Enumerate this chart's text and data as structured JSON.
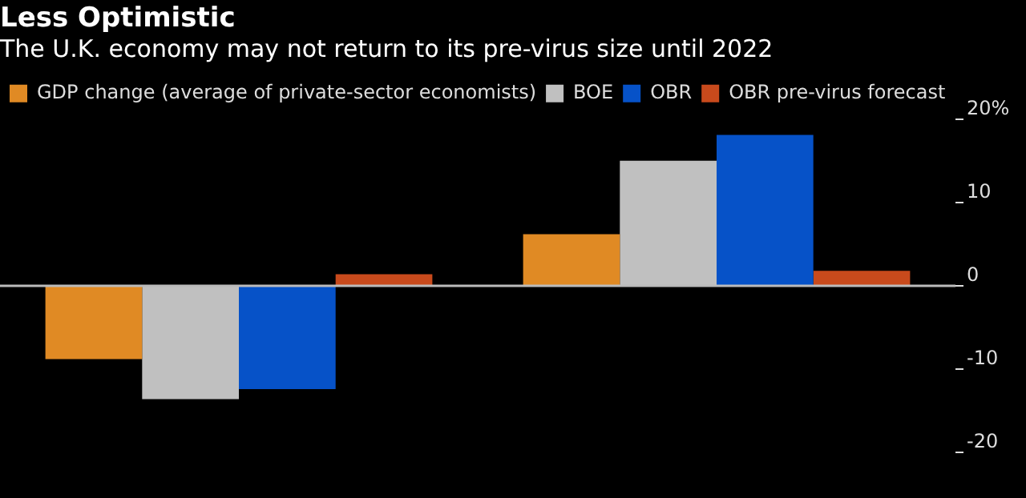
{
  "chart_data": {
    "type": "bar",
    "title": "Less Optimistic",
    "subtitle": "The U.K. economy may not return to its pre-virus size until 2022",
    "categories": [
      null,
      null
    ],
    "series": [
      {
        "name": "GDP change (average of private-sector economists)",
        "color": "#e08a24",
        "values": [
          -8.8,
          6.2
        ]
      },
      {
        "name": "BOE",
        "color": "#c0c0c0",
        "values": [
          -13.6,
          15.0
        ]
      },
      {
        "name": "OBR",
        "color": "#0652c8",
        "values": [
          -12.4,
          18.1
        ]
      },
      {
        "name": "OBR pre-virus forecast",
        "color": "#c84a1c",
        "values": [
          1.4,
          1.8
        ]
      }
    ],
    "ylim": [
      -20,
      20
    ],
    "yticks": [
      {
        "value": 20,
        "label": "20%"
      },
      10,
      0,
      -10,
      -20
    ],
    "legend": "top left",
    "ref_lines": [
      {
        "axis": "y",
        "value": 0,
        "color": "#bbbbbb"
      }
    ]
  }
}
